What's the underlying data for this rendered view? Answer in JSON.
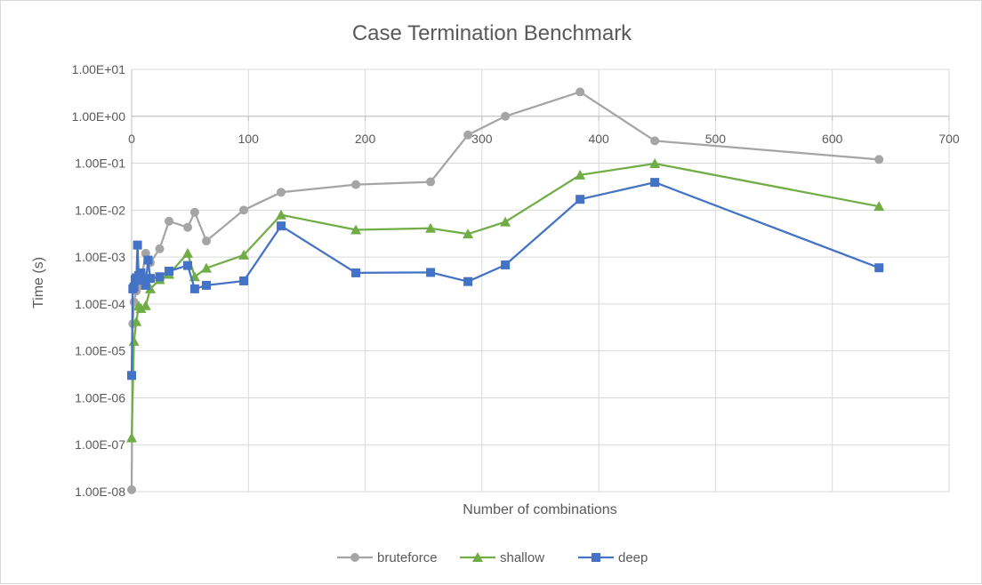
{
  "chart_data": {
    "type": "scatter",
    "title": "Case Termination Benchmark",
    "xlabel": "Number of combinations",
    "ylabel": "Time (s)",
    "xlim": [
      0,
      700
    ],
    "ylim": [
      1e-08,
      10
    ],
    "y_scale": "log",
    "x_axis_crosses_y_at": 1,
    "grid": true,
    "legend_position": "bottom",
    "x_ticks": [
      0,
      100,
      200,
      300,
      400,
      500,
      600,
      700
    ],
    "x_tick_labels": [
      "0",
      "100",
      "200",
      "300",
      "400",
      "500",
      "600",
      "700"
    ],
    "y_ticks": [
      1e-08,
      1e-07,
      1e-06,
      1e-05,
      0.0001,
      0.001,
      0.01,
      0.1,
      1,
      10
    ],
    "y_tick_labels": [
      "1.00E-08",
      "1.00E-07",
      "1.00E-06",
      "1.00E-05",
      "1.00E-04",
      "1.00E-03",
      "1.00E-02",
      "1.00E-01",
      "1.00E+00",
      "1.00E+01"
    ],
    "series": [
      {
        "name": "bruteforce",
        "color": "#a5a5a5",
        "marker": "circle",
        "points": [
          [
            0,
            1.1e-08
          ],
          [
            1,
            3.8e-05
          ],
          [
            2,
            0.00011
          ],
          [
            4,
            0.00019
          ],
          [
            6,
            0.00024
          ],
          [
            8,
            0.00035
          ],
          [
            9,
            0.00042
          ],
          [
            12,
            0.0012
          ],
          [
            16,
            0.00076
          ],
          [
            24,
            0.0015
          ],
          [
            32,
            0.0058
          ],
          [
            48,
            0.0043
          ],
          [
            54,
            0.009
          ],
          [
            64,
            0.0022
          ],
          [
            96,
            0.01
          ],
          [
            128,
            0.024
          ],
          [
            192,
            0.035
          ],
          [
            256,
            0.04
          ],
          [
            288,
            0.4
          ],
          [
            320,
            1.0
          ],
          [
            384,
            3.3
          ],
          [
            448,
            0.3
          ],
          [
            640,
            0.12
          ]
        ]
      },
      {
        "name": "shallow",
        "color": "#70ad47",
        "marker": "triangle",
        "points": [
          [
            0,
            1.4e-07
          ],
          [
            2,
            1.6e-05
          ],
          [
            4,
            4.2e-05
          ],
          [
            6,
            9e-05
          ],
          [
            8,
            8e-05
          ],
          [
            12,
            9.2e-05
          ],
          [
            16,
            0.00021
          ],
          [
            24,
            0.00033
          ],
          [
            32,
            0.00043
          ],
          [
            48,
            0.0012
          ],
          [
            54,
            0.00038
          ],
          [
            64,
            0.00058
          ],
          [
            96,
            0.0011
          ],
          [
            128,
            0.0079
          ],
          [
            192,
            0.0038
          ],
          [
            256,
            0.0041
          ],
          [
            288,
            0.0031
          ],
          [
            320,
            0.0056
          ],
          [
            384,
            0.056
          ],
          [
            448,
            0.098
          ],
          [
            640,
            0.012
          ]
        ]
      },
      {
        "name": "deep",
        "color": "#4472c4",
        "marker": "square",
        "points": [
          [
            0,
            3e-06
          ],
          [
            1,
            0.00021
          ],
          [
            2,
            0.00023
          ],
          [
            3,
            0.00033
          ],
          [
            4,
            0.00036
          ],
          [
            5,
            0.0018
          ],
          [
            6,
            0.0004
          ],
          [
            8,
            0.00046
          ],
          [
            10,
            0.00032
          ],
          [
            12,
            0.00025
          ],
          [
            14,
            0.00086
          ],
          [
            16,
            0.00035
          ],
          [
            24,
            0.00038
          ],
          [
            32,
            0.0005
          ],
          [
            48,
            0.00066
          ],
          [
            54,
            0.00021
          ],
          [
            64,
            0.00025
          ],
          [
            96,
            0.00031
          ],
          [
            128,
            0.0046
          ],
          [
            192,
            0.00046
          ],
          [
            256,
            0.00047
          ],
          [
            288,
            0.0003
          ],
          [
            320,
            0.00068
          ],
          [
            384,
            0.017
          ],
          [
            448,
            0.039
          ],
          [
            640,
            0.00059
          ]
        ]
      }
    ]
  }
}
